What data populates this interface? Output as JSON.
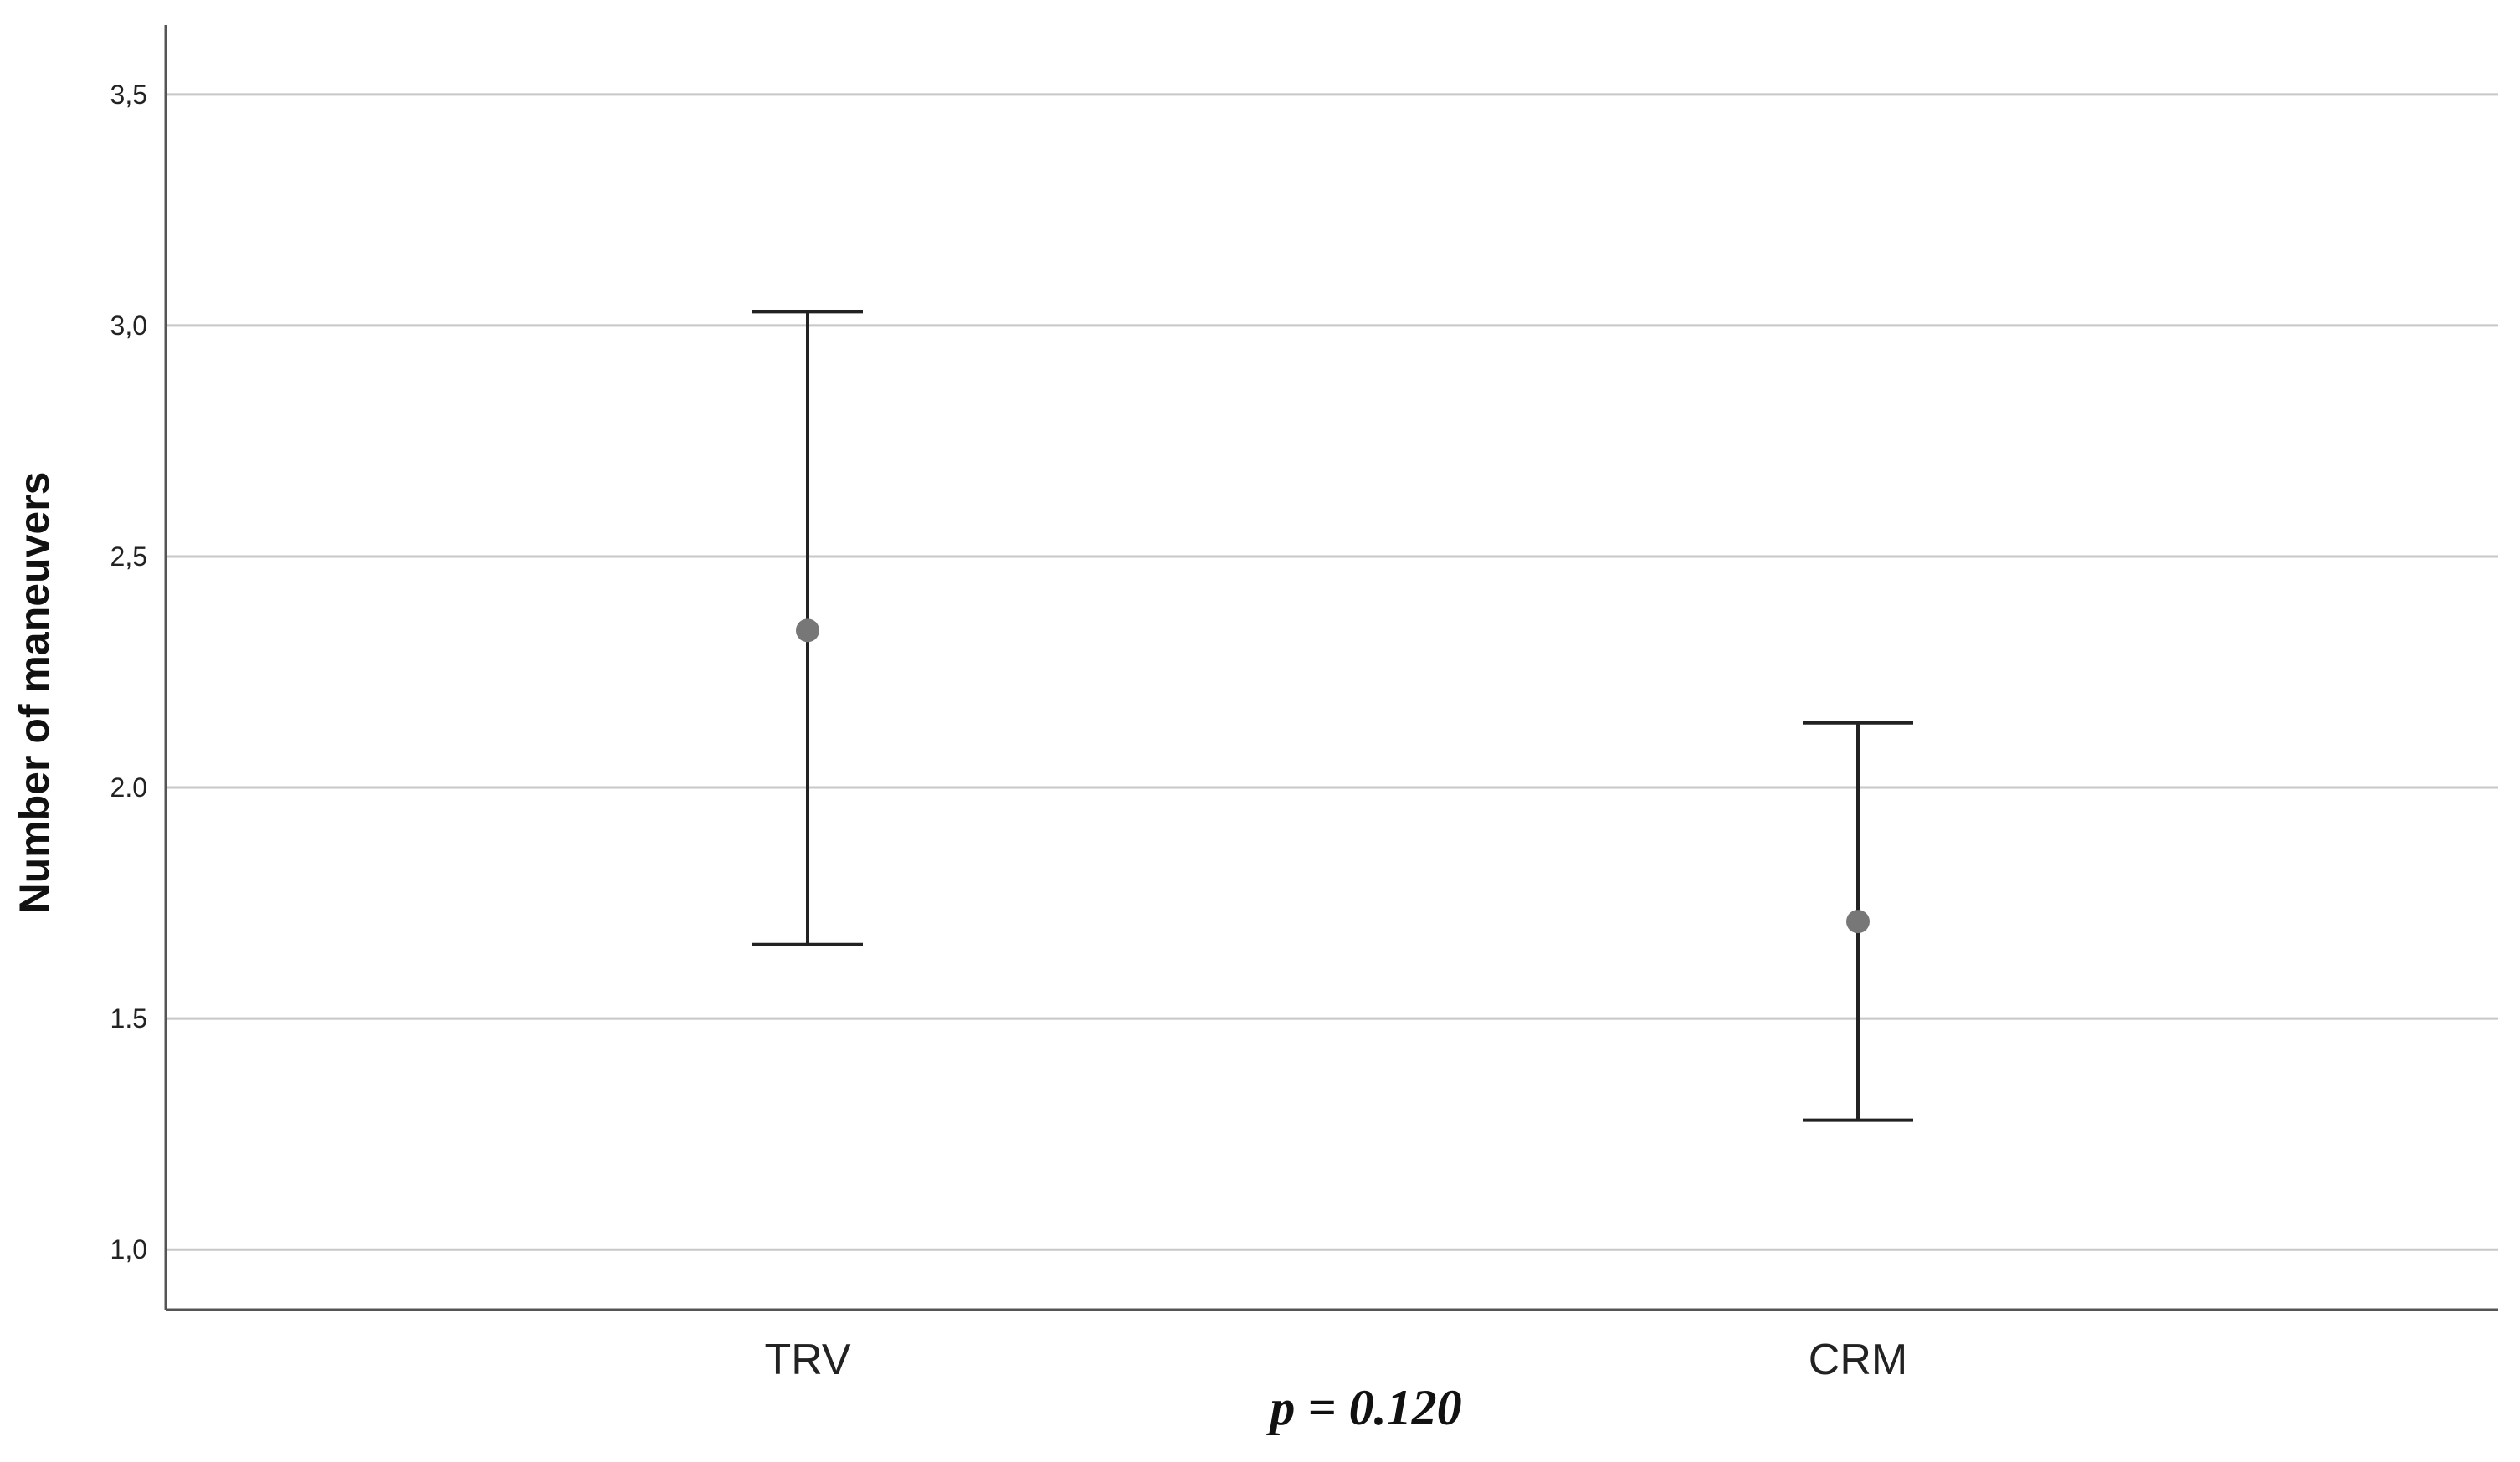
{
  "chart_data": {
    "type": "errorbar",
    "title": "",
    "xlabel": "",
    "ylabel": "Number of maneuvers",
    "ylim": [
      0.87,
      3.65
    ],
    "yticks": [
      {
        "value": 1.0,
        "label": "1,0"
      },
      {
        "value": 1.5,
        "label": "1.5"
      },
      {
        "value": 2.0,
        "label": "2.0"
      },
      {
        "value": 2.5,
        "label": "2,5"
      },
      {
        "value": 3.0,
        "label": "3,0"
      },
      {
        "value": 3.5,
        "label": "3,5"
      }
    ],
    "grid": "horizontal",
    "categories": [
      "TRV",
      "CRM"
    ],
    "points": [
      {
        "category": "TRV",
        "mean": 2.34,
        "lower": 1.66,
        "upper": 3.03
      },
      {
        "category": "CRM",
        "mean": 1.71,
        "lower": 1.28,
        "upper": 2.14
      }
    ],
    "annotation": "p = 0.120",
    "colors": {
      "marker": "#777777",
      "errorbar": "#222222",
      "grid": "#c8c8c8",
      "axis": "#555555"
    }
  }
}
